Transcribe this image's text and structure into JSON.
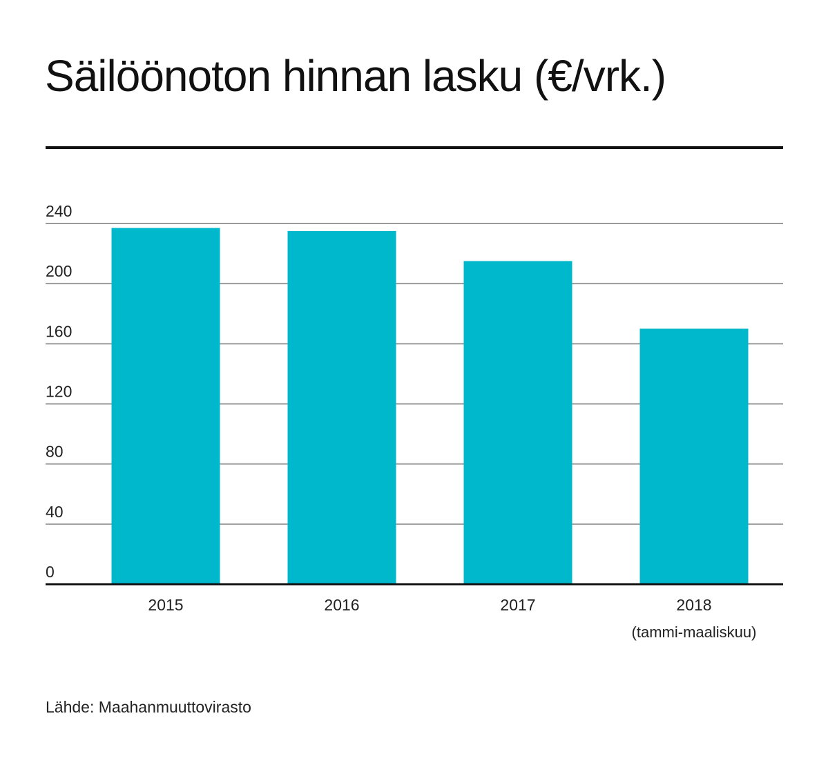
{
  "chart_data": {
    "type": "bar",
    "title": "Säilöönoton hinnan lasku (€/vrk.)",
    "categories": [
      "2015",
      "2016",
      "2017",
      "2018"
    ],
    "category_sublabels": [
      "",
      "",
      "",
      "(tammi-maaliskuu)"
    ],
    "values": [
      237,
      235,
      215,
      170
    ],
    "ylim": [
      0,
      240
    ],
    "yticks": [
      "0",
      "40",
      "80",
      "120",
      "160",
      "200",
      "240"
    ],
    "xlabel": "",
    "ylabel": "",
    "grid": true,
    "bar_color": "#00B8CC",
    "source": "Lähde: Maahanmuuttovirasto"
  }
}
